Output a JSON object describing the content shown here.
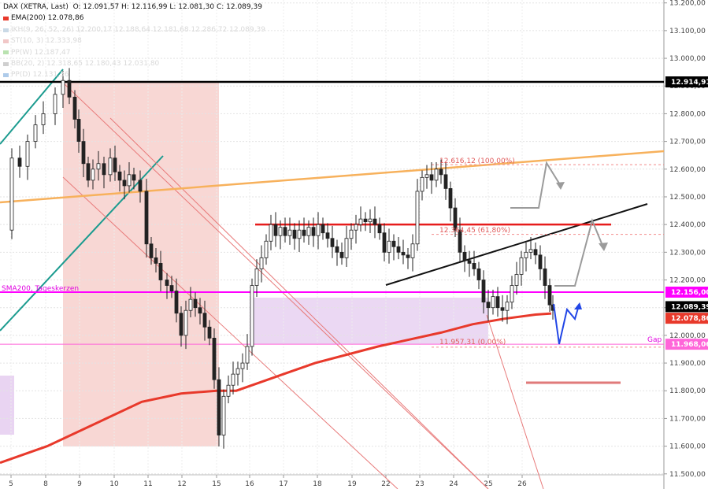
{
  "legend": {
    "title": "DAX (XETRA, Last)",
    "ohlc": "O: 12.091,57   H: 12.116,99   L: 12.081,30   C: 12.089,39",
    "ema": "EMA(200)  12.078,86",
    "ikh": "IKH(9, 26, 52, 26)  12.200,17  12.188,64  12.181,68  12.286,72  12.089,39",
    "st": "ST(10, 3)  12.333,98",
    "pp": "PP(W)  12.187,47",
    "bb": "BB(20, 2)  12.318,65  12.180,43  12.031,80",
    "ppd": "PP(D)  12.131,36"
  },
  "colors": {
    "candle_up": "#ffffff",
    "candle_down": "#222222",
    "ema": "#e8392b",
    "sma": "#ff00ff",
    "resistance": "#e61c1c",
    "orange_line": "#f7b15c",
    "teal": "#1b9b8f",
    "pink_zone": "#f6c9c6",
    "lavender_zone": "#e9d4f2",
    "forecast_blue": "#2246e6",
    "grey_arrow": "#9b9b9b"
  },
  "chart_data": {
    "type": "candlestick",
    "ylim": [
      11480,
      13220
    ],
    "y_ticks": [
      "11.500,00",
      "11.600,00",
      "11.700,00",
      "11.800,00",
      "11.900,00",
      "12.000,00",
      "12.100,00",
      "12.200,00",
      "12.300,00",
      "12.400,00",
      "12.500,00",
      "12.600,00",
      "12.700,00",
      "12.800,00",
      "12.900,00",
      "13.000,00",
      "13.100,00",
      "13.200,00"
    ],
    "x_ticks": [
      "5",
      "8",
      "9",
      "10",
      "11",
      "12",
      "15",
      "16",
      "17",
      "18",
      "19",
      "22",
      "23",
      "24",
      "25",
      "26"
    ],
    "price_labels": [
      {
        "text": "12.914,91",
        "value": 12914.91,
        "kind": "black"
      },
      {
        "text": "12.156,00",
        "value": 12156,
        "kind": "magenta"
      },
      {
        "text": "12.089,39",
        "value": 12089.39,
        "kind": "black"
      },
      {
        "text": "12.078,86",
        "value": 12078.86,
        "kind": "red"
      },
      {
        "text": "11.968,06",
        "value": 11968.06,
        "kind": "pink"
      }
    ],
    "annotations": {
      "fib100": "12.616,12 (100,00%)",
      "fib618": "12.364,45 (61,80%)",
      "fib0": "11.957,31 (0,00%)",
      "sma_label": "SMA200, Tageskerzen",
      "gap": "Gap"
    },
    "levels": {
      "black": 12914.91,
      "sma200": 12156,
      "gap": 11968.06,
      "fib100": 12616.12,
      "fib618": 12364.45,
      "fib0": 11957.31,
      "resistance": 12400
    }
  }
}
